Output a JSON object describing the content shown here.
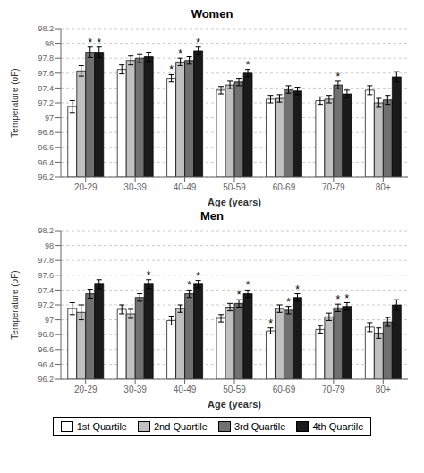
{
  "chart_data": [
    {
      "type": "bar",
      "title": "Women",
      "x_label": "Age (years)",
      "y_label": "Temperature (oF)",
      "categories": [
        "20-29",
        "30-39",
        "40-49",
        "50-59",
        "60-69",
        "70-79",
        "80+"
      ],
      "ylim": [
        96.2,
        98.2
      ],
      "yticks": [
        96.2,
        96.4,
        96.6,
        96.8,
        97,
        97.2,
        97.4,
        97.6,
        97.8,
        98,
        98.2
      ],
      "series": [
        {
          "name": "1st Quartile",
          "color": "#ffffff",
          "values": [
            97.15,
            97.65,
            97.53,
            97.37,
            97.25,
            97.23,
            97.37
          ],
          "errors": [
            0.08,
            0.06,
            0.05,
            0.05,
            0.05,
            0.05,
            0.06
          ],
          "annotations": [
            null,
            null,
            "*",
            null,
            null,
            null,
            null
          ]
        },
        {
          "name": "2nd Quartile",
          "color": "#c0c0c0",
          "values": [
            97.63,
            97.77,
            97.75,
            97.44,
            97.26,
            97.25,
            97.2
          ],
          "errors": [
            0.07,
            0.06,
            0.05,
            0.05,
            0.05,
            0.05,
            0.06
          ],
          "annotations": [
            null,
            null,
            "*",
            null,
            null,
            null,
            null
          ]
        },
        {
          "name": "3rd Quartile",
          "color": "#707070",
          "values": [
            97.88,
            97.8,
            97.77,
            97.48,
            97.38,
            97.44,
            97.24
          ],
          "errors": [
            0.07,
            0.06,
            0.05,
            0.05,
            0.05,
            0.05,
            0.06
          ],
          "annotations": [
            "*",
            null,
            null,
            null,
            null,
            "*",
            null
          ]
        },
        {
          "name": "4th Quartile",
          "color": "#1a1a1a",
          "values": [
            97.88,
            97.82,
            97.9,
            97.6,
            97.36,
            97.32,
            97.55
          ],
          "errors": [
            0.07,
            0.06,
            0.05,
            0.05,
            0.05,
            0.05,
            0.07
          ],
          "annotations": [
            "*",
            null,
            "*",
            "*",
            null,
            null,
            null
          ]
        }
      ]
    },
    {
      "type": "bar",
      "title": "Men",
      "x_label": "Age (years)",
      "y_label": "Temperature (oF)",
      "legend": "bottom",
      "categories": [
        "20-29",
        "30-39",
        "40-49",
        "50-59",
        "60-69",
        "70-79",
        "80+"
      ],
      "ylim": [
        96.2,
        98.2
      ],
      "yticks": [
        96.2,
        96.4,
        96.6,
        96.8,
        97,
        97.2,
        97.4,
        97.6,
        97.8,
        98,
        98.2
      ],
      "series": [
        {
          "name": "1st Quartile",
          "color": "#ffffff",
          "values": [
            97.15,
            97.14,
            96.99,
            97.02,
            96.85,
            96.87,
            96.9
          ],
          "errors": [
            0.08,
            0.06,
            0.06,
            0.05,
            0.04,
            0.05,
            0.06
          ],
          "annotations": [
            null,
            null,
            null,
            null,
            "*",
            null,
            null
          ]
        },
        {
          "name": "2nd Quartile",
          "color": "#c0c0c0",
          "values": [
            97.1,
            97.08,
            97.15,
            97.17,
            97.15,
            97.04,
            96.82
          ],
          "errors": [
            0.1,
            0.06,
            0.05,
            0.05,
            0.05,
            0.05,
            0.07
          ],
          "annotations": [
            null,
            null,
            null,
            null,
            null,
            null,
            null
          ]
        },
        {
          "name": "3rd Quartile",
          "color": "#707070",
          "values": [
            97.35,
            97.3,
            97.35,
            97.22,
            97.13,
            97.16,
            96.97
          ],
          "errors": [
            0.06,
            0.05,
            0.05,
            0.05,
            0.05,
            0.05,
            0.06
          ],
          "annotations": [
            null,
            null,
            "*",
            "*",
            "*",
            "*",
            null
          ]
        },
        {
          "name": "4th Quartile",
          "color": "#1a1a1a",
          "values": [
            97.48,
            97.48,
            97.48,
            97.35,
            97.3,
            97.18,
            97.2
          ],
          "errors": [
            0.06,
            0.06,
            0.05,
            0.05,
            0.05,
            0.05,
            0.07
          ],
          "annotations": [
            null,
            "*",
            "*",
            "*",
            "*",
            "*",
            null
          ]
        }
      ]
    }
  ]
}
